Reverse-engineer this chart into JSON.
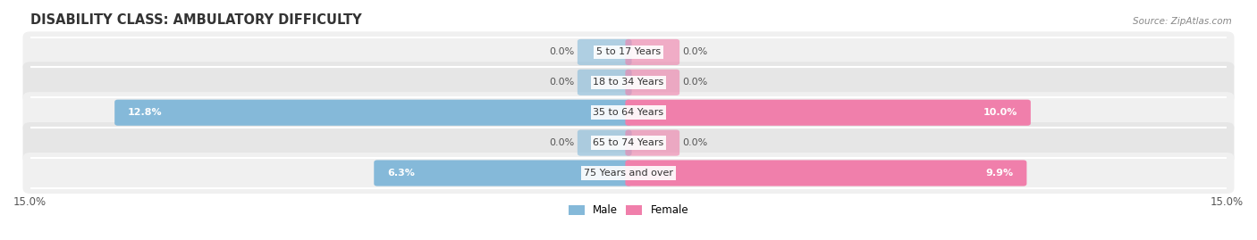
{
  "title": "DISABILITY CLASS: AMBULATORY DIFFICULTY",
  "source": "Source: ZipAtlas.com",
  "categories": [
    "5 to 17 Years",
    "18 to 34 Years",
    "35 to 64 Years",
    "65 to 74 Years",
    "75 Years and over"
  ],
  "male_values": [
    0.0,
    0.0,
    12.8,
    0.0,
    6.3
  ],
  "female_values": [
    0.0,
    0.0,
    10.0,
    0.0,
    9.9
  ],
  "x_max": 15.0,
  "male_color": "#85b9d9",
  "female_color": "#f07fab",
  "row_bg_even": "#f0f0f0",
  "row_bg_odd": "#e6e6e6",
  "row_separator": "#ffffff",
  "title_fontsize": 10.5,
  "label_fontsize": 8,
  "tick_fontsize": 8.5,
  "background_color": "#ffffff"
}
